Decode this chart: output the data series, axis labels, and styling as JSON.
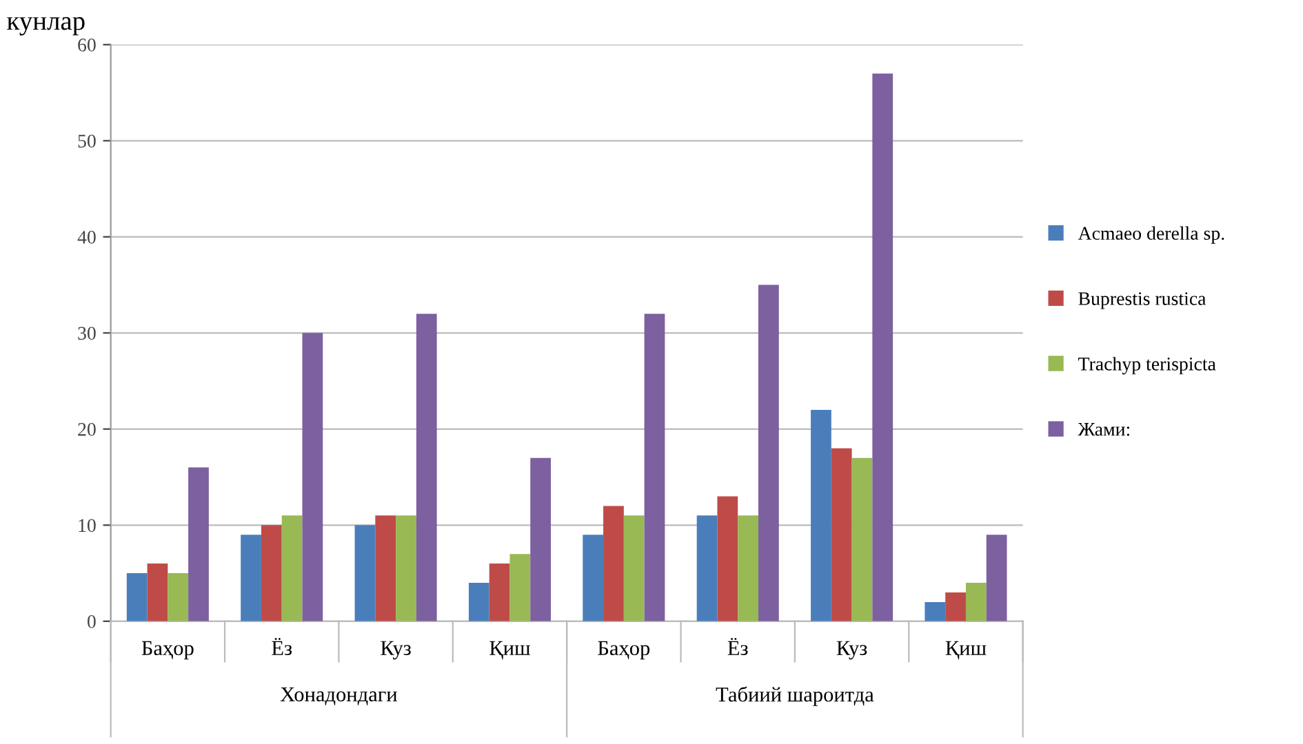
{
  "chart_data": {
    "type": "bar",
    "title": "кунлар",
    "categories": [
      "Баҳор",
      "Ёз",
      "Куз",
      "Қиш",
      "Баҳор",
      "Ёз",
      "Куз",
      "Қиш"
    ],
    "annotations": [
      "Хонадондаги",
      "Табиий шароитда"
    ],
    "series": [
      {
        "name": "Acmaeo derella sp.",
        "color": "#4a7ebb",
        "values": [
          5,
          9,
          10,
          4,
          9,
          11,
          22,
          2
        ]
      },
      {
        "name": "Buprestis rustica",
        "color": "#be4b48",
        "values": [
          6,
          10,
          11,
          6,
          12,
          13,
          18,
          3
        ]
      },
      {
        "name": "Trachyp terispicta",
        "color": "#98b954",
        "values": [
          5,
          11,
          11,
          7,
          11,
          11,
          17,
          4
        ]
      },
      {
        "name": "Жами:",
        "color": "#7d60a0",
        "values": [
          16,
          30,
          32,
          17,
          32,
          35,
          57,
          9
        ]
      }
    ],
    "ylim": [
      0,
      60
    ],
    "yticks": [
      0,
      10,
      20,
      30,
      40,
      50,
      60
    ],
    "grid": "y",
    "legend": "right"
  }
}
